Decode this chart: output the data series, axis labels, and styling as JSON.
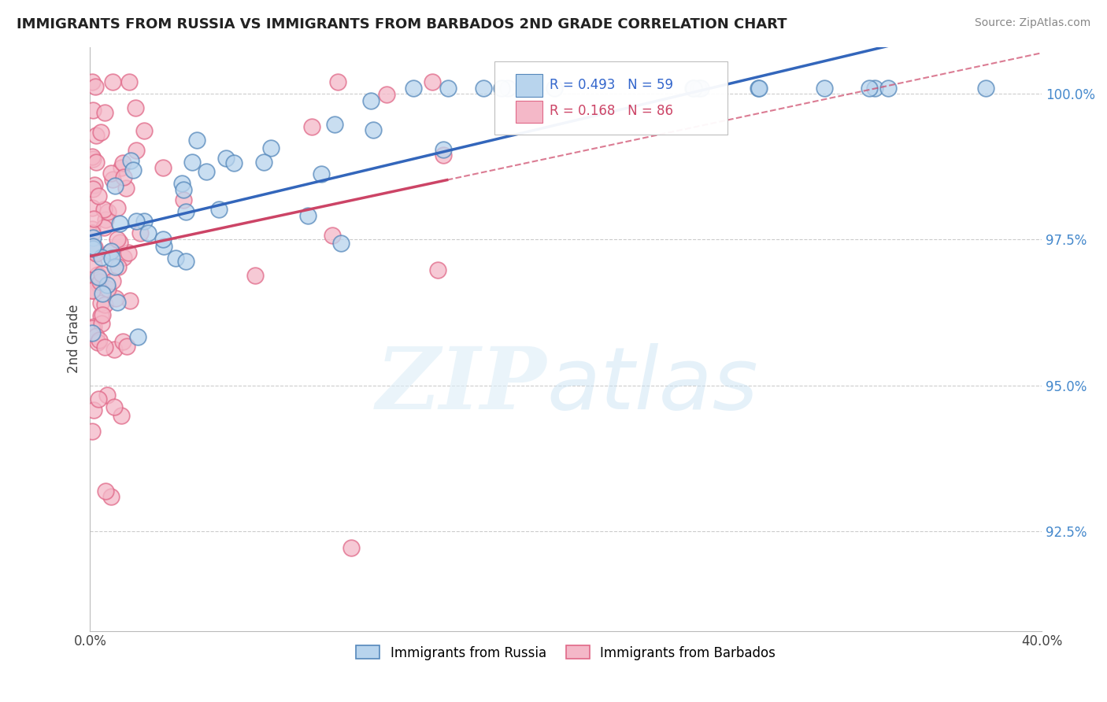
{
  "title": "IMMIGRANTS FROM RUSSIA VS IMMIGRANTS FROM BARBADOS 2ND GRADE CORRELATION CHART",
  "source": "Source: ZipAtlas.com",
  "ylabel_label": "2nd Grade",
  "yticks": [
    "92.5%",
    "95.0%",
    "97.5%",
    "100.0%"
  ],
  "ytick_values": [
    0.925,
    0.95,
    0.975,
    1.0
  ],
  "xlim": [
    0.0,
    0.4
  ],
  "ylim": [
    0.908,
    1.008
  ],
  "legend_blue_text": "R = 0.493   N = 59",
  "legend_pink_text": "R = 0.168   N = 86",
  "blue_fill": "#b8d4ed",
  "blue_edge": "#5588bb",
  "pink_fill": "#f4b8c8",
  "pink_edge": "#e06888",
  "blue_line": "#3366bb",
  "pink_line": "#cc4466",
  "watermark_zip": "ZIP",
  "watermark_atlas": "atlas",
  "background_color": "#ffffff"
}
